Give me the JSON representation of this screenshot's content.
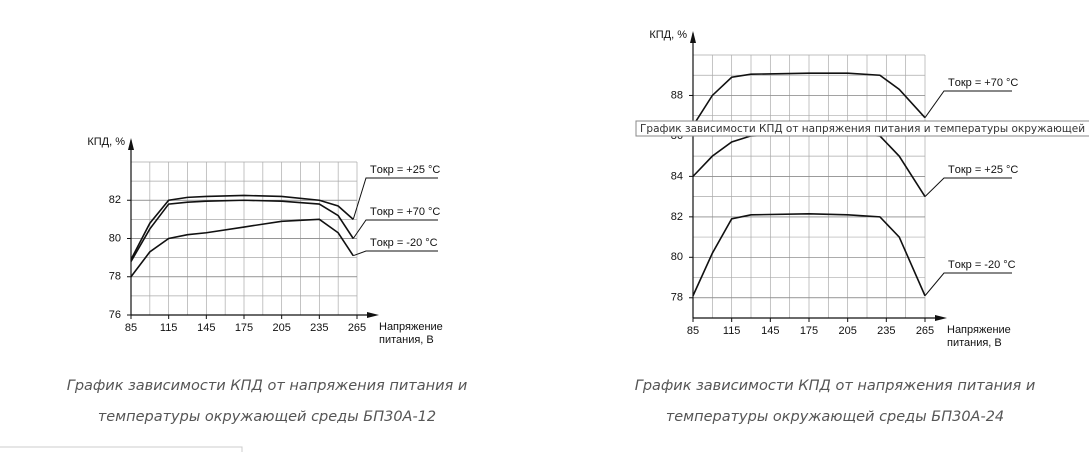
{
  "chart_data": [
    {
      "type": "line",
      "ylabel": "КПД, %",
      "xlabel_lines": [
        "Напряжение",
        "питания, В"
      ],
      "x": [
        85,
        100,
        115,
        130,
        145,
        175,
        205,
        235,
        250,
        262
      ],
      "series": [
        {
          "name": "Tокр = +25 °C",
          "color": "#111111",
          "values": [
            78.9,
            80.8,
            82.0,
            82.15,
            82.2,
            82.25,
            82.2,
            82.0,
            81.7,
            81.0
          ]
        },
        {
          "name": "Tокр = +70 °C",
          "color": "#111111",
          "values": [
            78.8,
            80.5,
            81.8,
            81.9,
            81.95,
            82.0,
            81.95,
            81.8,
            81.2,
            80.0
          ]
        },
        {
          "name": "Tокр = -20 °C",
          "color": "#111111",
          "values": [
            78.0,
            79.3,
            80.0,
            80.2,
            80.3,
            80.6,
            80.9,
            81.0,
            80.3,
            79.1
          ]
        }
      ],
      "xlim": [
        85,
        265
      ],
      "xticks": [
        85,
        115,
        145,
        175,
        205,
        235,
        265
      ],
      "ylim": [
        76,
        84
      ],
      "yticks": [
        76,
        78,
        80,
        82
      ],
      "grid": true
    },
    {
      "type": "line",
      "ylabel": "КПД, %",
      "xlabel_lines": [
        "Напряжение",
        "питания, В"
      ],
      "x": [
        85,
        100,
        115,
        130,
        175,
        205,
        230,
        245,
        265
      ],
      "series": [
        {
          "name": "Tокр = +70 °C",
          "color": "#111111",
          "values": [
            86.5,
            88.0,
            88.9,
            89.05,
            89.1,
            89.1,
            89.0,
            88.3,
            86.9
          ]
        },
        {
          "name": "Tокр = +25 °C",
          "color": "#111111",
          "values": [
            84.0,
            85.0,
            85.7,
            86.0,
            86.1,
            86.1,
            86.0,
            85.0,
            83.0
          ]
        },
        {
          "name": "Tокр = -20 °C",
          "color": "#111111",
          "values": [
            78.1,
            80.2,
            81.9,
            82.1,
            82.15,
            82.1,
            82.0,
            81.0,
            78.1
          ]
        }
      ],
      "xlim": [
        85,
        265
      ],
      "xticks": [
        85,
        115,
        145,
        175,
        205,
        235,
        265
      ],
      "ylim": [
        77,
        90
      ],
      "yticks": [
        78,
        80,
        82,
        84,
        86,
        88
      ],
      "grid": true
    }
  ],
  "captions": [
    [
      "График зависимости КПД от напряжения питания и",
      "температуры окружающей среды БП30А-12"
    ],
    [
      "График зависимости КПД от напряжения питания и",
      "температуры окружающей среды БП30А-24"
    ]
  ],
  "tooltip": "График зависимости КПД от напряжения питания и температуры окружающей с"
}
